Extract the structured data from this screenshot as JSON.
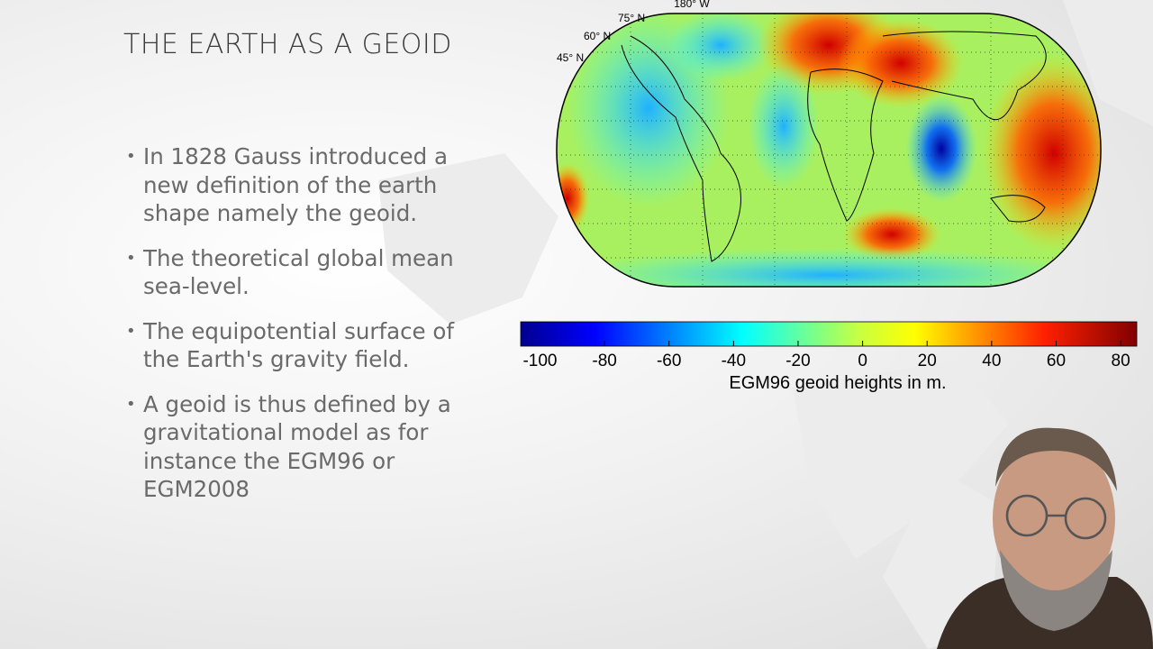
{
  "slide": {
    "title": "THE EARTH AS A GEOID",
    "bullets": [
      "In 1828 Gauss introduced a new definition of the earth shape namely the geoid.",
      "The theoretical global mean sea-level.",
      "The equipotential surface of the Earth's gravity field.",
      "A geoid is thus defined by a gravitational model as for instance the EGM96 or EGM2008"
    ],
    "map_labels": [
      "180° W",
      "75° N",
      "60° N",
      "45° N"
    ],
    "colorbar": {
      "lim": [
        -106,
        85
      ],
      "ticks": [
        -100,
        -80,
        -60,
        -40,
        -20,
        0,
        20,
        40,
        60,
        80
      ],
      "label": "EGM96 geoid heights in m."
    }
  }
}
